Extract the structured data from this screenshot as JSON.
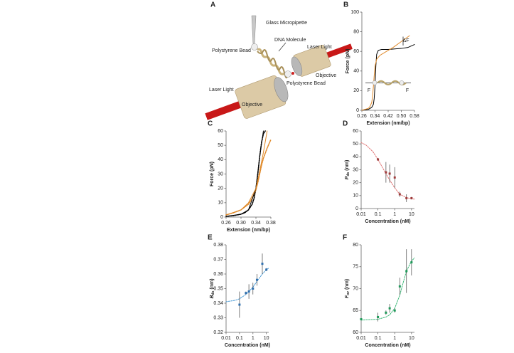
{
  "diagram": {
    "letter": "A",
    "labels": [
      "Glass  Micropipette",
      "DNA Molecule",
      "Polystyrene Bead",
      "Laser Light",
      "Objective",
      "Polystyrene Bead",
      "Laser Light",
      "Objective"
    ]
  },
  "chart_data": [
    {
      "panel": "B",
      "type": "line",
      "xlabel": "Extension (nm/bp)",
      "ylabel": "Force (pN)",
      "xlim": [
        0.26,
        0.58
      ],
      "ylim": [
        0,
        100
      ],
      "xticks": [
        0.26,
        0.34,
        0.42,
        {
          "value": 0.5,
          "label": "0.50"
        },
        0.58
      ],
      "yticks": [
        0,
        20,
        40,
        60,
        80,
        100
      ],
      "annotations": [
        "ΔF",
        "F",
        "F"
      ],
      "series": [
        {
          "color": "#000000",
          "style": "line",
          "x": [
            0.26,
            0.3,
            0.32,
            0.33,
            0.335,
            0.34,
            0.345,
            0.35,
            0.36,
            0.38,
            0.42,
            0.46,
            0.5,
            0.54,
            0.58
          ],
          "values": [
            0,
            1,
            3,
            6,
            12,
            25,
            45,
            57,
            61,
            62,
            62,
            62.5,
            63,
            64,
            67
          ]
        },
        {
          "color": "#e08a2a",
          "style": "line",
          "x": [
            0.26,
            0.3,
            0.31,
            0.32,
            0.325,
            0.33,
            0.335,
            0.34,
            0.35,
            0.37,
            0.4,
            0.45,
            0.5,
            0.55
          ],
          "values": [
            0,
            2,
            4,
            8,
            14,
            24,
            35,
            45,
            52,
            56,
            59,
            64,
            70,
            76
          ]
        }
      ]
    },
    {
      "panel": "C",
      "type": "line",
      "xlabel": "Extension (nm/bp)",
      "ylabel": "Force (pN)",
      "xlim": [
        0.26,
        0.38
      ],
      "ylim": [
        0,
        60
      ],
      "xticks": [
        0.26,
        {
          "value": 0.3,
          "label": "0.30"
        },
        0.34,
        0.38
      ],
      "yticks": [
        0,
        10,
        20,
        30,
        40,
        50,
        60
      ],
      "series": [
        {
          "color": "#000000",
          "style": "dotted",
          "x": [
            0.26,
            0.28,
            0.3,
            0.31,
            0.32,
            0.33,
            0.335,
            0.34,
            0.345,
            0.35,
            0.355,
            0.36,
            0.365
          ],
          "values": [
            0.5,
            1,
            2,
            3,
            5,
            9,
            13,
            20,
            30,
            42,
            52,
            58,
            60
          ]
        },
        {
          "color": "#e08a2a",
          "style": "dotted",
          "x": [
            0.26,
            0.28,
            0.3,
            0.31,
            0.32,
            0.33,
            0.34,
            0.345,
            0.35,
            0.355,
            0.36,
            0.37,
            0.38
          ],
          "values": [
            1.5,
            3,
            5,
            7,
            9,
            13,
            19,
            24,
            30,
            36,
            41,
            48,
            54
          ]
        },
        {
          "color": "#000000",
          "style": "line",
          "x": [
            0.26,
            0.3,
            0.32,
            0.34,
            0.35,
            0.36
          ],
          "values": [
            0.5,
            2,
            5,
            20,
            42,
            60
          ]
        },
        {
          "color": "#e08a2a",
          "style": "line",
          "x": [
            0.26,
            0.3,
            0.32,
            0.34,
            0.35,
            0.36,
            0.37
          ],
          "values": [
            1.5,
            5,
            10,
            20,
            32,
            45,
            60
          ]
        }
      ]
    },
    {
      "panel": "D",
      "type": "scatter",
      "xlabel": "Concentration (nM)",
      "ylabel": {
        "symbol": "P",
        "subscript": "ds",
        "unit": "(nm)"
      },
      "xscale": "log",
      "xlim": [
        0.01,
        15
      ],
      "ylim": [
        0,
        60
      ],
      "xticks": [
        0.01,
        0.1,
        1,
        10
      ],
      "yticks": [
        0,
        10,
        20,
        30,
        40,
        50,
        60
      ],
      "series": [
        {
          "color": "#e07878",
          "style": "dashed",
          "x": [
            0.01,
            0.02,
            0.05,
            0.1,
            0.2,
            0.5,
            1,
            2,
            5,
            10,
            15
          ],
          "values": [
            51,
            49,
            44,
            38,
            31,
            22,
            16,
            11,
            8.5,
            7.5,
            7.3
          ]
        },
        {
          "color": "#a03c3c",
          "style": "points",
          "x": [
            0.1,
            0.3,
            0.5,
            1,
            2,
            5,
            10
          ],
          "values": [
            38,
            28,
            27,
            24,
            11,
            8,
            8
          ],
          "errors": [
            1,
            8,
            7,
            8,
            2,
            3,
            1
          ]
        }
      ]
    },
    {
      "panel": "E",
      "type": "scatter",
      "xlabel": "Concentration (nM)",
      "ylabel": {
        "symbol": "B",
        "subscript": "ds",
        "unit": "(nm)"
      },
      "xscale": "log",
      "xlim": [
        0.01,
        15
      ],
      "ylim": [
        0.32,
        0.38
      ],
      "xticks": [
        0.01,
        0.1,
        1,
        10
      ],
      "yticks": [
        0.32,
        0.33,
        0.34,
        0.35,
        0.36,
        0.37,
        0.38
      ],
      "series": [
        {
          "color": "#4a9ad4",
          "style": "dashed",
          "x": [
            0.01,
            0.05,
            0.1,
            0.3,
            0.5,
            1,
            2,
            5,
            10,
            15
          ],
          "values": [
            0.341,
            0.342,
            0.343,
            0.346,
            0.348,
            0.351,
            0.355,
            0.36,
            0.363,
            0.364
          ]
        },
        {
          "color": "#2f6fae",
          "style": "points",
          "x": [
            0.1,
            0.3,
            0.5,
            1,
            2,
            5,
            10
          ],
          "values": [
            0.339,
            0.347,
            0.348,
            0.35,
            0.356,
            0.367,
            0.363
          ],
          "errors": [
            0.009,
            0.001,
            0.005,
            0.004,
            0.004,
            0.007,
            0.001
          ]
        }
      ]
    },
    {
      "panel": "F",
      "type": "scatter",
      "xlabel": "Concentration (nM)",
      "ylabel": {
        "symbol": "F",
        "subscript": "ov",
        "unit": "(nm)"
      },
      "xscale": "log",
      "xlim": [
        0.01,
        15
      ],
      "ylim": [
        60,
        80
      ],
      "xticks": [
        0.01,
        0.1,
        1,
        10
      ],
      "yticks": [
        60,
        65,
        70,
        75,
        80
      ],
      "series": [
        {
          "color": "#3cb878",
          "style": "dashed",
          "x": [
            0.01,
            0.1,
            0.3,
            0.5,
            1,
            2,
            3,
            5,
            10,
            15
          ],
          "values": [
            62.8,
            63,
            63.5,
            64,
            65.5,
            68.5,
            71,
            74,
            76.3,
            77
          ]
        },
        {
          "color": "#1f9a5a",
          "style": "points",
          "x": [
            0.01,
            0.1,
            0.3,
            0.5,
            1,
            2,
            5,
            10
          ],
          "values": [
            63,
            63.5,
            64.5,
            65.5,
            65,
            70.5,
            74,
            76
          ],
          "errors": [
            0,
            1,
            0.5,
            1,
            0.5,
            2,
            5,
            3
          ]
        }
      ]
    }
  ]
}
